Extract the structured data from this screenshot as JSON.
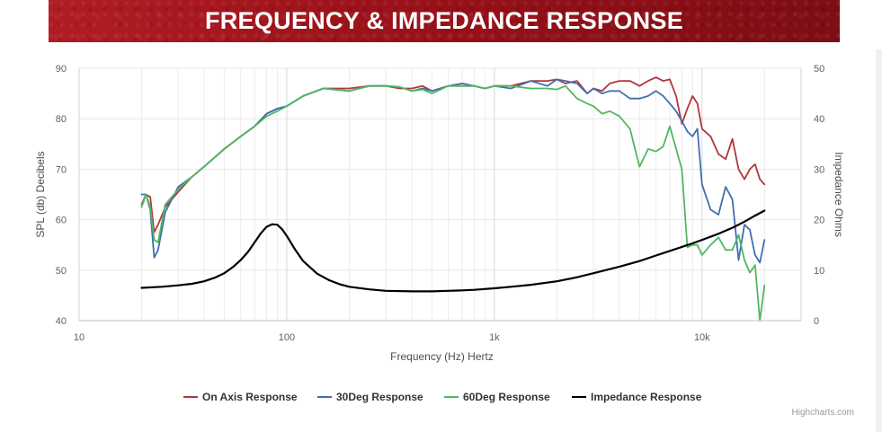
{
  "header": {
    "title": "FREQUENCY & IMPEDANCE RESPONSE"
  },
  "credit": "Highcharts.com",
  "colors": {
    "header_bg": "#9a1119",
    "on_axis": "#b3363b",
    "deg30": "#3f6fb0",
    "deg60": "#4fb862",
    "impedance": "#000000",
    "grid": "#e6e6e6"
  },
  "chart_data": {
    "type": "line",
    "x_scale": "log",
    "grid": true,
    "legend_position": "bottom-center",
    "xlabel": "Frequency (Hz) Hertz",
    "ylabel_left": "SPL (db) Decibels",
    "ylabel_right": "Impedance Ohms",
    "xlim": [
      10,
      30000
    ],
    "ylim_left": [
      40,
      90
    ],
    "ylim_right": [
      0,
      50
    ],
    "x_ticks": [
      {
        "value": 10,
        "label": "10"
      },
      {
        "value": 100,
        "label": "100"
      },
      {
        "value": 1000,
        "label": "1k"
      },
      {
        "value": 10000,
        "label": "10k"
      }
    ],
    "y_ticks_left": [
      {
        "value": 40,
        "label": "40"
      },
      {
        "value": 50,
        "label": "50"
      },
      {
        "value": 60,
        "label": "60"
      },
      {
        "value": 70,
        "label": "70"
      },
      {
        "value": 80,
        "label": "80"
      },
      {
        "value": 90,
        "label": "90"
      }
    ],
    "y_ticks_right": [
      {
        "value": 0,
        "label": "0"
      },
      {
        "value": 10,
        "label": "10"
      },
      {
        "value": 20,
        "label": "20"
      },
      {
        "value": 30,
        "label": "30"
      },
      {
        "value": 40,
        "label": "40"
      },
      {
        "value": 50,
        "label": "50"
      }
    ],
    "series": [
      {
        "name": "On Axis Response",
        "axis": "left",
        "color": "#b3363b",
        "x": [
          20,
          21,
          22,
          23,
          24,
          26,
          30,
          35,
          40,
          50,
          60,
          70,
          80,
          90,
          100,
          120,
          150,
          200,
          250,
          300,
          350,
          400,
          450,
          500,
          600,
          700,
          800,
          900,
          1000,
          1200,
          1500,
          1800,
          2000,
          2200,
          2500,
          2800,
          3000,
          3300,
          3600,
          4000,
          4500,
          5000,
          5500,
          6000,
          6500,
          7000,
          7500,
          8000,
          8500,
          9000,
          9500,
          10000,
          11000,
          12000,
          13000,
          14000,
          15000,
          16000,
          17000,
          18000,
          19000,
          20000
        ],
        "y": [
          63,
          65,
          64.5,
          57.5,
          59,
          62.5,
          65.5,
          68.5,
          70.5,
          74,
          76.5,
          78.5,
          81,
          82,
          82.5,
          84.5,
          86,
          86,
          86.5,
          86.5,
          86,
          86,
          86.5,
          85.5,
          86.5,
          86.5,
          86.5,
          86,
          86.5,
          86.5,
          87.5,
          87.5,
          87.8,
          87,
          87.5,
          85,
          86,
          85.5,
          87,
          87.5,
          87.5,
          86.5,
          87.5,
          88.2,
          87.5,
          87.8,
          84.5,
          79,
          82,
          84.5,
          83,
          78,
          76.5,
          73,
          72,
          76,
          70,
          68,
          70,
          71,
          68,
          67
        ]
      },
      {
        "name": "30Deg Response",
        "axis": "left",
        "color": "#3f6fb0",
        "x": [
          20,
          21,
          22,
          23,
          24,
          26,
          30,
          35,
          40,
          50,
          60,
          70,
          80,
          90,
          100,
          120,
          150,
          200,
          250,
          300,
          350,
          400,
          450,
          500,
          600,
          700,
          800,
          900,
          1000,
          1200,
          1500,
          1800,
          2000,
          2200,
          2500,
          2800,
          3000,
          3300,
          3600,
          4000,
          4500,
          5000,
          5500,
          6000,
          6500,
          7000,
          7500,
          8000,
          8500,
          9000,
          9500,
          10000,
          11000,
          12000,
          13000,
          14000,
          15000,
          16000,
          17000,
          18000,
          19000,
          20000
        ],
        "y": [
          65,
          65,
          62,
          52.5,
          54,
          61.5,
          66.5,
          68.5,
          70.5,
          74,
          76.5,
          78.5,
          81,
          82,
          82.5,
          84.5,
          86,
          85.5,
          86.5,
          86.5,
          86.3,
          85.5,
          86,
          85.5,
          86.5,
          87,
          86.5,
          86,
          86.5,
          86,
          87.5,
          86.5,
          87.8,
          87.5,
          87,
          85,
          86,
          85,
          85.5,
          85.5,
          84,
          84,
          84.5,
          85.5,
          84.5,
          83,
          81.5,
          79.5,
          77.5,
          76.5,
          78,
          67,
          62,
          61,
          66.5,
          64,
          52,
          59,
          58,
          53,
          51.5,
          56
        ]
      },
      {
        "name": "60Deg Response",
        "axis": "left",
        "color": "#4fb862",
        "x": [
          20,
          21,
          22,
          23,
          24,
          26,
          30,
          35,
          40,
          50,
          60,
          70,
          80,
          90,
          100,
          120,
          150,
          200,
          250,
          300,
          350,
          400,
          450,
          500,
          600,
          700,
          800,
          900,
          1000,
          1200,
          1500,
          1800,
          2000,
          2200,
          2500,
          2800,
          3000,
          3300,
          3600,
          4000,
          4500,
          5000,
          5500,
          6000,
          6500,
          7000,
          7500,
          8000,
          8500,
          9000,
          9500,
          10000,
          11000,
          12000,
          13000,
          14000,
          15000,
          16000,
          17000,
          18000,
          19000,
          20000
        ],
        "y": [
          62.5,
          65,
          62.5,
          56,
          55.5,
          63,
          66,
          68.5,
          70.5,
          74,
          76.5,
          78.5,
          80.5,
          81.5,
          82.5,
          84.5,
          86,
          85.5,
          86.5,
          86.5,
          86.3,
          85.5,
          85.8,
          85,
          86.5,
          86.5,
          86.5,
          86,
          86.5,
          86.5,
          86,
          86,
          85.8,
          86.5,
          84,
          83,
          82.5,
          81,
          81.5,
          80.5,
          78,
          70.5,
          74,
          73.5,
          74.5,
          78.5,
          74,
          70,
          54.5,
          55,
          55,
          53,
          55,
          56.5,
          54,
          54,
          57,
          52,
          49.5,
          51,
          40,
          47
        ]
      },
      {
        "name": "Impedance Response",
        "axis": "right",
        "color": "#000000",
        "x": [
          20,
          25,
          30,
          35,
          40,
          45,
          50,
          55,
          60,
          65,
          70,
          75,
          80,
          85,
          90,
          95,
          100,
          110,
          120,
          140,
          160,
          180,
          200,
          250,
          300,
          400,
          500,
          600,
          700,
          800,
          1000,
          1200,
          1500,
          2000,
          2500,
          3000,
          4000,
          5000,
          6000,
          7000,
          8000,
          9000,
          10000,
          12000,
          14000,
          16000,
          18000,
          20000
        ],
        "y": [
          6.5,
          6.7,
          7,
          7.3,
          7.8,
          8.5,
          9.4,
          10.6,
          12,
          13.6,
          15.5,
          17.3,
          18.6,
          19.1,
          19,
          18.1,
          16.8,
          14,
          11.8,
          9.3,
          8,
          7.2,
          6.7,
          6.2,
          5.9,
          5.8,
          5.8,
          5.9,
          6,
          6.1,
          6.4,
          6.7,
          7.1,
          7.8,
          8.6,
          9.4,
          10.7,
          11.8,
          12.9,
          13.8,
          14.6,
          15.3,
          16,
          17.2,
          18.4,
          19.6,
          20.8,
          21.8
        ]
      }
    ]
  }
}
